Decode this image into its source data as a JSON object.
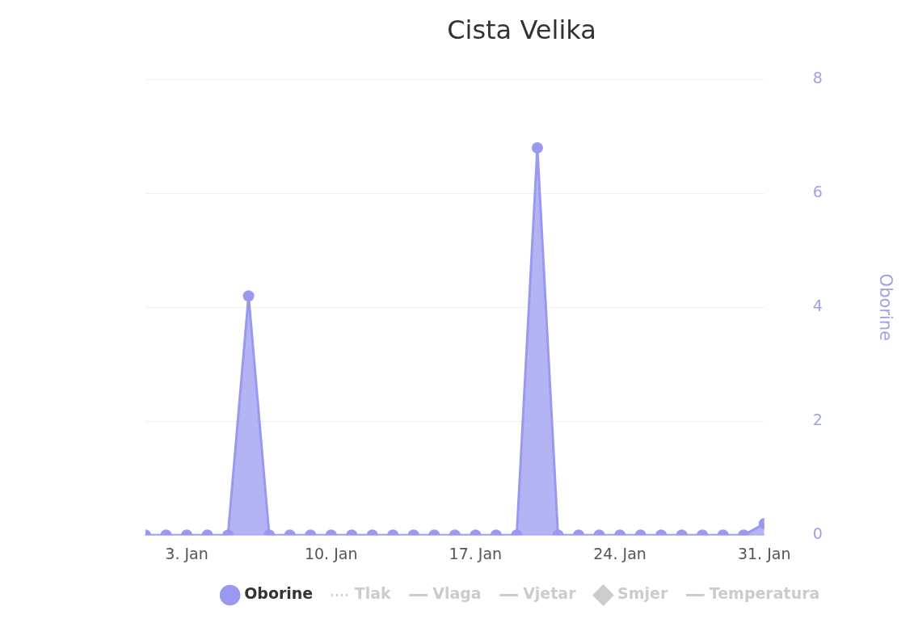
{
  "chart_data": {
    "type": "area",
    "title": "Cista Velika",
    "x": [
      "--01-01",
      "--01-02",
      "--01-03",
      "--01-04",
      "--01-05",
      "--01-06",
      "--01-07",
      "--01-08",
      "--01-09",
      "--01-10",
      "--01-11",
      "--01-12",
      "--01-13",
      "--01-14",
      "--01-15",
      "--01-16",
      "--01-17",
      "--01-18",
      "--01-19",
      "--01-20",
      "--01-21",
      "--01-22",
      "--01-23",
      "--01-24",
      "--01-25",
      "--01-26",
      "--01-27",
      "--01-28",
      "--01-29",
      "--01-30",
      "--01-31"
    ],
    "series": [
      {
        "name": "Oborine",
        "type": "area",
        "color": "#9999f0",
        "marker": "circle",
        "values": [
          0,
          0,
          0,
          0,
          0,
          4.2,
          0,
          0,
          0,
          0,
          0,
          0,
          0,
          0,
          0,
          0,
          0,
          0,
          0,
          6.8,
          0,
          0,
          0,
          0,
          0,
          0,
          0,
          0,
          0,
          0,
          0.2
        ]
      },
      {
        "name": "Tlak",
        "type": "line",
        "color": "#cccccc",
        "marker": "diamond",
        "line_style": "dotted",
        "values": [
          null,
          null,
          null,
          null,
          null,
          null,
          null,
          null,
          null,
          null,
          null,
          null,
          null,
          null,
          null,
          null,
          null,
          null,
          null,
          null,
          null,
          null,
          null,
          null,
          null,
          null,
          null,
          null,
          null,
          null,
          null
        ]
      },
      {
        "name": "Vlaga",
        "type": "line",
        "color": "#cccccc",
        "marker": "none",
        "values": [
          null,
          null,
          null,
          null,
          null,
          null,
          null,
          null,
          null,
          null,
          null,
          null,
          null,
          null,
          null,
          null,
          null,
          null,
          null,
          null,
          null,
          null,
          null,
          null,
          null,
          null,
          null,
          null,
          null,
          null,
          null
        ]
      },
      {
        "name": "Vjetar",
        "type": "line",
        "color": "#cccccc",
        "marker": "none",
        "values": [
          null,
          null,
          null,
          null,
          null,
          null,
          null,
          null,
          null,
          null,
          null,
          null,
          null,
          null,
          null,
          null,
          null,
          null,
          null,
          null,
          null,
          null,
          null,
          null,
          null,
          null,
          null,
          null,
          null,
          null,
          null
        ]
      },
      {
        "name": "Smjer",
        "type": "scatter",
        "color": "#cccccc",
        "marker": "diamond",
        "values": [
          null,
          null,
          null,
          null,
          null,
          null,
          null,
          null,
          null,
          null,
          null,
          null,
          null,
          null,
          null,
          null,
          null,
          null,
          null,
          null,
          null,
          null,
          null,
          null,
          null,
          null,
          null,
          null,
          null,
          null,
          null
        ]
      },
      {
        "name": "Temperatura",
        "type": "line",
        "color": "#cccccc",
        "marker": "none",
        "values": [
          null,
          null,
          null,
          null,
          null,
          null,
          null,
          null,
          null,
          null,
          null,
          null,
          null,
          null,
          null,
          null,
          null,
          null,
          null,
          null,
          null,
          null,
          null,
          null,
          null,
          null,
          null,
          null,
          null,
          null,
          null
        ]
      }
    ],
    "xlim": [
      "--01-01",
      "--01-31"
    ],
    "xticks": [
      {
        "value": "--01-03",
        "label": "3. Jan"
      },
      {
        "value": "--01-10",
        "label": "10. Jan"
      },
      {
        "value": "--01-17",
        "label": "17. Jan"
      },
      {
        "value": "--01-24",
        "label": "24. Jan"
      },
      {
        "value": "--01-31",
        "label": "31. Jan"
      }
    ],
    "ylabel": "Oborine",
    "ylim": [
      0,
      8
    ],
    "yticks": [
      0,
      2,
      4,
      6,
      8
    ],
    "grid": "y",
    "legend": "bottom"
  }
}
